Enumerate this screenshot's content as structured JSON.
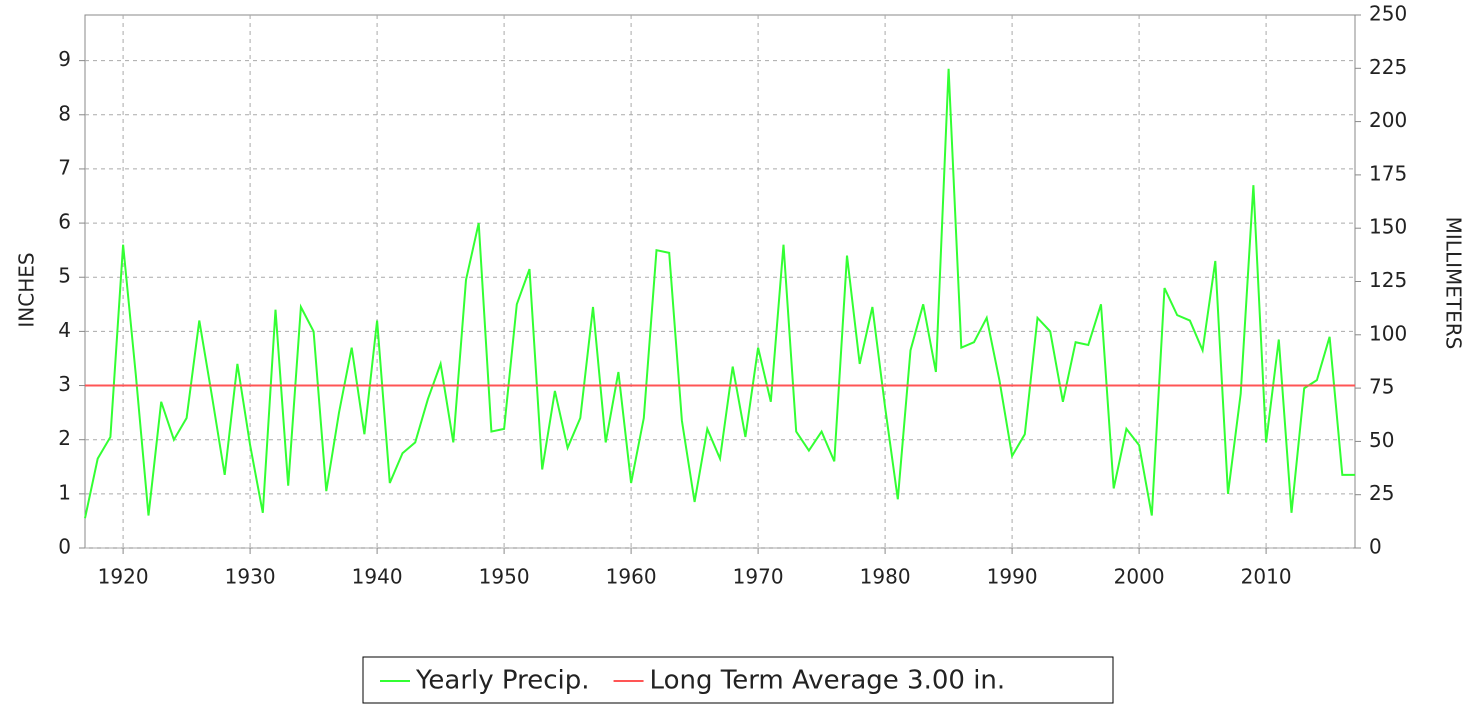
{
  "chart_data": {
    "type": "line",
    "y_label": "INCHES",
    "y2_label": "MILLIMETERS",
    "x": [
      1917,
      1918,
      1919,
      1920,
      1921,
      1922,
      1923,
      1924,
      1925,
      1926,
      1927,
      1928,
      1929,
      1930,
      1931,
      1932,
      1933,
      1934,
      1935,
      1936,
      1937,
      1938,
      1939,
      1940,
      1941,
      1942,
      1943,
      1944,
      1945,
      1946,
      1947,
      1948,
      1949,
      1950,
      1951,
      1952,
      1953,
      1954,
      1955,
      1956,
      1957,
      1958,
      1959,
      1960,
      1961,
      1962,
      1963,
      1964,
      1965,
      1966,
      1967,
      1968,
      1969,
      1970,
      1971,
      1972,
      1973,
      1974,
      1975,
      1976,
      1977,
      1978,
      1979,
      1980,
      1981,
      1982,
      1983,
      1984,
      1985,
      1986,
      1987,
      1988,
      1989,
      1990,
      1991,
      1992,
      1993,
      1994,
      1995,
      1996,
      1997,
      1998,
      1999,
      2000,
      2001,
      2002,
      2003,
      2004,
      2005,
      2006,
      2007,
      2008,
      2009,
      2010,
      2011,
      2012,
      2013,
      2014,
      2015,
      2016,
      2017
    ],
    "series": [
      {
        "name": "Yearly Precip.",
        "color": "#33ff33",
        "values": [
          0.55,
          1.65,
          2.05,
          5.6,
          3.2,
          0.6,
          2.7,
          2.0,
          2.4,
          4.2,
          2.8,
          1.35,
          3.4,
          1.9,
          0.65,
          4.4,
          1.15,
          4.45,
          4.0,
          1.05,
          2.5,
          3.7,
          2.1,
          4.2,
          1.2,
          1.75,
          1.95,
          2.75,
          3.4,
          1.95,
          4.95,
          6.0,
          2.15,
          2.2,
          4.5,
          5.15,
          1.45,
          2.9,
          1.85,
          2.4,
          4.45,
          1.95,
          3.25,
          1.2,
          2.4,
          5.5,
          5.45,
          2.35,
          0.85,
          2.2,
          1.65,
          3.35,
          2.05,
          3.7,
          2.7,
          5.6,
          2.15,
          1.8,
          2.15,
          1.6,
          5.4,
          3.4,
          4.45,
          2.6,
          0.9,
          3.65,
          4.5,
          3.25,
          8.85,
          3.7,
          3.8,
          4.25,
          3.1,
          1.7,
          2.1,
          4.25,
          4.0,
          2.7,
          3.8,
          3.75,
          4.5,
          1.1,
          2.2,
          1.9,
          0.6,
          4.8,
          4.3,
          4.2,
          3.65,
          5.3,
          1.0,
          2.85,
          6.7,
          1.95,
          3.85,
          0.65,
          2.95,
          3.1,
          3.9,
          1.35,
          1.35
        ]
      },
      {
        "name": "Long Term Average 3.00 in.",
        "color": "#ff5555",
        "x": [
          1917,
          2017
        ],
        "values": [
          3,
          3
        ]
      }
    ],
    "xlim": [
      1917,
      2017
    ],
    "xticks": [
      1920,
      1930,
      1940,
      1950,
      1960,
      1970,
      1980,
      1990,
      2000,
      2010
    ],
    "ylim": [
      0,
      9.8425
    ],
    "yticks": [
      0,
      1,
      2,
      3,
      4,
      5,
      6,
      7,
      8,
      9
    ],
    "y2lim": [
      0,
      250
    ],
    "y2ticks": [
      0,
      25,
      50,
      75,
      100,
      125,
      150,
      175,
      200,
      225,
      250
    ],
    "grid": true
  }
}
